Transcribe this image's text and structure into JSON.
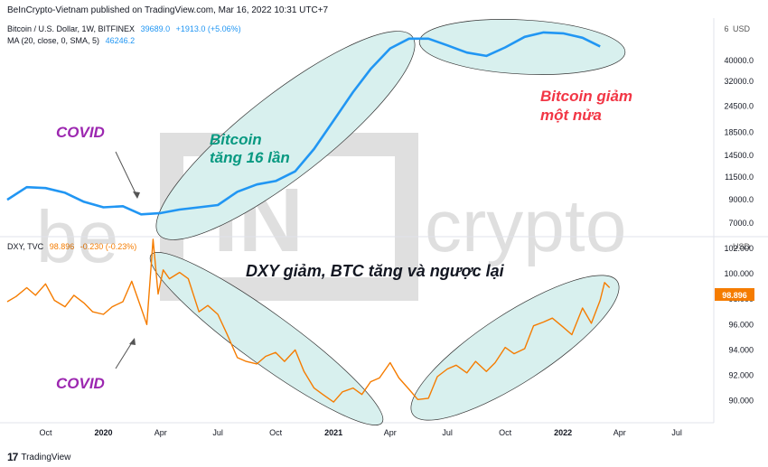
{
  "header": {
    "published": "BeInCrypto-Vietnam published on TradingView.com, Mar 16, 2022 10:31 UTC+7"
  },
  "btc_legend": {
    "symbol": "Bitcoin / U.S. Dollar, 1W, BITFINEX",
    "price": "39689.0",
    "change": "+1913.0 (+5.06%)",
    "ma_label": "MA (20, close, 0, SMA, 5)",
    "ma_value": "46246.2",
    "unit": "USD",
    "unit_prefix": "6"
  },
  "dxy_legend": {
    "symbol": "DXY, TVC",
    "price": "98.896",
    "change": "-0.230 (-0.23%)",
    "unit": "USD",
    "last_value": "98.896"
  },
  "annotations": {
    "covid_top": "COVID",
    "covid_bottom": "COVID",
    "btc_up": "Bitcoin",
    "btc_up_2": "tăng 16 lần",
    "btc_down": "Bitcoin giảm",
    "btc_down_2": "một nửa",
    "dxy_note": "DXY giảm, BTC tăng và ngược lại"
  },
  "watermark": {
    "text_left": "be",
    "text_mid": "IN",
    "text_right": "crypto"
  },
  "footer": {
    "brand": "TradingView"
  },
  "colors": {
    "btc_line": "#2196f3",
    "dxy_line": "#f57c00",
    "ellipse_fill": "#d8f0ee",
    "annot_purple": "#9c27b0",
    "annot_green": "#089981",
    "annot_red": "#f23645",
    "price_tag": "#f57c00"
  },
  "chart_data": [
    {
      "type": "line",
      "name": "btc",
      "log_scale": true,
      "x_start": "2019-08-01",
      "x_end": "2022-07-31",
      "xticks": [
        {
          "label": "Oct",
          "date": "2019-10-01"
        },
        {
          "label": "2020",
          "date": "2020-01-01",
          "bold": true
        },
        {
          "label": "Apr",
          "date": "2020-04-01"
        },
        {
          "label": "Jul",
          "date": "2020-07-01"
        },
        {
          "label": "Oct",
          "date": "2020-10-01"
        },
        {
          "label": "2021",
          "date": "2021-01-01",
          "bold": true
        },
        {
          "label": "Apr",
          "date": "2021-04-01"
        },
        {
          "label": "Jul",
          "date": "2021-07-01"
        },
        {
          "label": "Oct",
          "date": "2021-10-01"
        },
        {
          "label": "2022",
          "date": "2022-01-01",
          "bold": true
        },
        {
          "label": "Apr",
          "date": "2022-04-01"
        },
        {
          "label": "Jul",
          "date": "2022-07-01"
        }
      ],
      "yticks": [
        40000,
        32000,
        24500,
        18500,
        14500,
        11500,
        9000,
        7000
      ],
      "ylim": [
        6300,
        60000
      ],
      "series": [
        {
          "points": [
            [
              "2019-08-01",
              9000
            ],
            [
              "2019-09-01",
              10300
            ],
            [
              "2019-10-01",
              10200
            ],
            [
              "2019-11-01",
              9700
            ],
            [
              "2019-12-01",
              8800
            ],
            [
              "2020-01-01",
              8300
            ],
            [
              "2020-02-01",
              8400
            ],
            [
              "2020-03-01",
              7700
            ],
            [
              "2020-04-01",
              7800
            ],
            [
              "2020-05-01",
              8100
            ],
            [
              "2020-06-01",
              8300
            ],
            [
              "2020-07-01",
              8500
            ],
            [
              "2020-08-01",
              9800
            ],
            [
              "2020-09-01",
              10600
            ],
            [
              "2020-10-01",
              11000
            ],
            [
              "2020-11-01",
              12200
            ],
            [
              "2020-12-01",
              15500
            ],
            [
              "2021-01-01",
              21000
            ],
            [
              "2021-02-01",
              28500
            ],
            [
              "2021-03-01",
              36500
            ],
            [
              "2021-04-01",
              45500
            ],
            [
              "2021-05-01",
              50500
            ],
            [
              "2021-06-01",
              50500
            ],
            [
              "2021-07-01",
              47000
            ],
            [
              "2021-08-01",
              43500
            ],
            [
              "2021-09-01",
              42000
            ],
            [
              "2021-10-01",
              46000
            ],
            [
              "2021-11-01",
              51500
            ],
            [
              "2021-12-01",
              54000
            ],
            [
              "2022-01-01",
              53500
            ],
            [
              "2022-02-01",
              51000
            ],
            [
              "2022-03-01",
              46500
            ]
          ]
        }
      ]
    },
    {
      "type": "line",
      "name": "dxy",
      "x_start": "2019-08-01",
      "x_end": "2022-07-31",
      "yticks": [
        102.0,
        100.0,
        98.0,
        96.0,
        94.0,
        92.0,
        90.0
      ],
      "ylim": [
        88.7,
        102.7
      ],
      "series": [
        {
          "points": [
            [
              "2019-08-01",
              97.8
            ],
            [
              "2019-08-15",
              98.2
            ],
            [
              "2019-09-01",
              98.9
            ],
            [
              "2019-09-15",
              98.3
            ],
            [
              "2019-10-01",
              99.2
            ],
            [
              "2019-10-15",
              97.9
            ],
            [
              "2019-11-01",
              97.4
            ],
            [
              "2019-11-15",
              98.3
            ],
            [
              "2019-12-01",
              97.7
            ],
            [
              "2019-12-15",
              97.0
            ],
            [
              "2020-01-01",
              96.8
            ],
            [
              "2020-01-15",
              97.4
            ],
            [
              "2020-02-01",
              97.8
            ],
            [
              "2020-02-15",
              99.4
            ],
            [
              "2020-03-01",
              97.3
            ],
            [
              "2020-03-10",
              96.0
            ],
            [
              "2020-03-20",
              102.7
            ],
            [
              "2020-03-28",
              98.4
            ],
            [
              "2020-04-05",
              100.3
            ],
            [
              "2020-04-15",
              99.6
            ],
            [
              "2020-05-01",
              100.1
            ],
            [
              "2020-05-15",
              99.6
            ],
            [
              "2020-06-01",
              97.0
            ],
            [
              "2020-06-15",
              97.5
            ],
            [
              "2020-07-01",
              96.8
            ],
            [
              "2020-07-15",
              95.3
            ],
            [
              "2020-08-01",
              93.4
            ],
            [
              "2020-08-15",
              93.1
            ],
            [
              "2020-09-01",
              92.9
            ],
            [
              "2020-09-15",
              93.5
            ],
            [
              "2020-10-01",
              93.8
            ],
            [
              "2020-10-15",
              93.1
            ],
            [
              "2020-11-01",
              94.0
            ],
            [
              "2020-11-15",
              92.3
            ],
            [
              "2020-12-01",
              91.0
            ],
            [
              "2020-12-15",
              90.5
            ],
            [
              "2021-01-01",
              89.9
            ],
            [
              "2021-01-15",
              90.7
            ],
            [
              "2021-02-01",
              91.0
            ],
            [
              "2021-02-15",
              90.5
            ],
            [
              "2021-03-01",
              91.5
            ],
            [
              "2021-03-15",
              91.8
            ],
            [
              "2021-04-01",
              93.0
            ],
            [
              "2021-04-15",
              91.8
            ],
            [
              "2021-05-01",
              90.9
            ],
            [
              "2021-05-15",
              90.1
            ],
            [
              "2021-06-01",
              90.2
            ],
            [
              "2021-06-15",
              91.9
            ],
            [
              "2021-07-01",
              92.5
            ],
            [
              "2021-07-15",
              92.8
            ],
            [
              "2021-08-01",
              92.2
            ],
            [
              "2021-08-15",
              93.1
            ],
            [
              "2021-09-01",
              92.3
            ],
            [
              "2021-09-15",
              93.0
            ],
            [
              "2021-10-01",
              94.2
            ],
            [
              "2021-10-15",
              93.7
            ],
            [
              "2021-11-01",
              94.1
            ],
            [
              "2021-11-15",
              95.9
            ],
            [
              "2021-12-01",
              96.2
            ],
            [
              "2021-12-15",
              96.5
            ],
            [
              "2022-01-01",
              95.8
            ],
            [
              "2022-01-15",
              95.2
            ],
            [
              "2022-02-01",
              97.3
            ],
            [
              "2022-02-15",
              96.1
            ],
            [
              "2022-03-01",
              97.9
            ],
            [
              "2022-03-08",
              99.3
            ],
            [
              "2022-03-16",
              98.896
            ]
          ]
        }
      ]
    }
  ]
}
